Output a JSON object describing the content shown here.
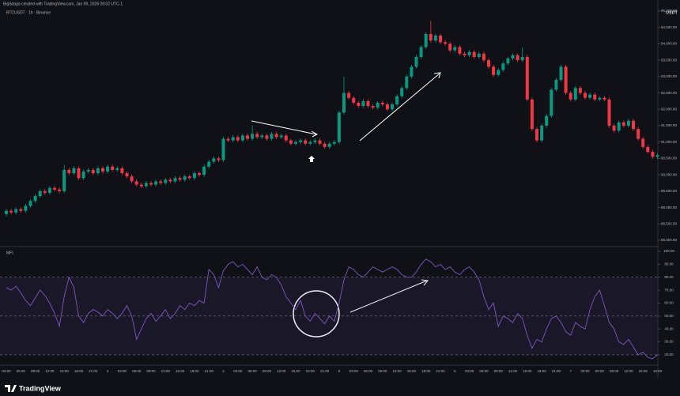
{
  "header": {
    "caption": "BigSdaga created with TradingView.com, Jan 09, 2026 09:02 UTC-1"
  },
  "footer": {
    "brand": "TradingView"
  },
  "chart_data": [
    {
      "type": "candlestick",
      "title": "BTCUSDT · 1h · Binance",
      "y_label": "USDT",
      "up_color": "#089981",
      "down_color": "#f23645",
      "ylim": [
        88000,
        95000
      ],
      "yticks": [
        {
          "value": 88000,
          "label": "88,000.00"
        },
        {
          "value": 88500,
          "label": "88,500.00"
        },
        {
          "value": 89000,
          "label": "89,000.00"
        },
        {
          "value": 89500,
          "label": "89,500.00"
        },
        {
          "value": 90000,
          "label": "90,000.00"
        },
        {
          "value": 90500,
          "label": "90,500.00"
        },
        {
          "value": 91000,
          "label": "91,000.00"
        },
        {
          "value": 91500,
          "label": "91,500.00"
        },
        {
          "value": 92000,
          "label": "92,000.00"
        },
        {
          "value": 92500,
          "label": "92,500.00"
        },
        {
          "value": 93000,
          "label": "93,000.00"
        },
        {
          "value": 93500,
          "label": "93,500.00"
        },
        {
          "value": 94000,
          "label": "94,000.00"
        },
        {
          "value": 94500,
          "label": "94,500.00"
        },
        {
          "value": 95000,
          "label": "95,000.00"
        }
      ],
      "open": [
        88800,
        88900,
        88850,
        88950,
        88900,
        89050,
        89200,
        89350,
        89500,
        89450,
        89600,
        89550,
        89500,
        90150,
        90050,
        90200,
        89900,
        90100,
        90150,
        90050,
        90200,
        90100,
        90250,
        90150,
        90200,
        90050,
        89950,
        89800,
        89700,
        89650,
        89750,
        89700,
        89800,
        89750,
        89850,
        89800,
        89900,
        89850,
        89950,
        89900,
        90050,
        90000,
        90250,
        90400,
        90500,
        90450,
        91100,
        91050,
        91150,
        91050,
        91200,
        91100,
        91250,
        91150,
        91200,
        91100,
        91250,
        91150,
        91200,
        91050,
        90950,
        91000,
        91050,
        90950,
        91000,
        91050,
        90950,
        90850,
        90950,
        91000,
        91900,
        92500,
        92350,
        92200,
        92100,
        92250,
        92100,
        92050,
        92200,
        92150,
        92000,
        92150,
        92400,
        92650,
        93000,
        93300,
        93600,
        93900,
        94300,
        94100,
        94250,
        94050,
        94000,
        93800,
        93900,
        93700,
        93650,
        93750,
        93600,
        93700,
        93500,
        93300,
        93050,
        93200,
        93400,
        93550,
        93650,
        93500,
        93600,
        92300,
        91400,
        91050,
        91500,
        91800,
        92600,
        92900,
        93300,
        92500,
        92300,
        92650,
        92500,
        92350,
        92450,
        92300,
        92350,
        92300,
        91500,
        91350,
        91600,
        91500,
        91650,
        91400,
        91100,
        90850,
        90700,
        90550
      ],
      "high": [
        88960,
        88960,
        89010,
        89010,
        89110,
        89260,
        89410,
        89560,
        89560,
        89660,
        89660,
        89610,
        90300,
        90210,
        90260,
        90260,
        90160,
        90210,
        90210,
        90260,
        90260,
        90310,
        90310,
        90260,
        90260,
        90110,
        90010,
        89860,
        89760,
        89810,
        89810,
        89860,
        89860,
        89910,
        89910,
        89960,
        89960,
        90010,
        90010,
        90110,
        90110,
        90310,
        90460,
        90560,
        90560,
        91160,
        91160,
        91210,
        91210,
        91260,
        91260,
        91500,
        91310,
        91260,
        91260,
        91310,
        91310,
        91260,
        91260,
        91110,
        91060,
        91110,
        91110,
        91060,
        91110,
        91110,
        91010,
        91010,
        91060,
        91960,
        93000,
        92560,
        92410,
        92260,
        92310,
        92310,
        92160,
        92260,
        92260,
        92210,
        92210,
        92460,
        92710,
        93060,
        93360,
        93660,
        93960,
        94360,
        94700,
        94310,
        94310,
        94110,
        94060,
        93960,
        93960,
        93760,
        93810,
        93810,
        93760,
        93760,
        93560,
        93360,
        93260,
        93460,
        93610,
        93710,
        93710,
        93900,
        93660,
        92360,
        91460,
        91560,
        91860,
        92660,
        92960,
        93360,
        93360,
        92560,
        92710,
        92710,
        92560,
        92510,
        92510,
        92410,
        92410,
        92360,
        91560,
        91660,
        91660,
        91710,
        91710,
        91460,
        91160,
        90910,
        90760,
        90660
      ],
      "low": [
        88740,
        88790,
        88790,
        88840,
        88840,
        88990,
        89140,
        89290,
        89390,
        89390,
        89490,
        89440,
        89440,
        89990,
        89990,
        89840,
        89840,
        90040,
        89990,
        89990,
        90040,
        90040,
        90090,
        90090,
        89990,
        89890,
        89740,
        89640,
        89590,
        89590,
        89640,
        89640,
        89690,
        89690,
        89740,
        89740,
        89790,
        89790,
        89840,
        89840,
        89940,
        89940,
        90190,
        90340,
        90390,
        90390,
        90990,
        90990,
        90990,
        90990,
        91040,
        91040,
        91090,
        91090,
        91040,
        91040,
        91090,
        91090,
        90990,
        90890,
        90890,
        90940,
        90890,
        90890,
        90940,
        90890,
        90790,
        90790,
        90890,
        90940,
        91840,
        92290,
        92140,
        92040,
        92040,
        92040,
        91990,
        91990,
        92090,
        91940,
        91940,
        92090,
        92340,
        92590,
        92940,
        93240,
        93540,
        93840,
        94040,
        94040,
        93990,
        93940,
        93740,
        93740,
        93640,
        93590,
        93590,
        93540,
        93540,
        93440,
        93240,
        92990,
        92990,
        93140,
        93340,
        93490,
        93440,
        93440,
        92240,
        91340,
        90990,
        90990,
        91440,
        91740,
        92540,
        92840,
        92440,
        92240,
        92240,
        92440,
        92290,
        92290,
        92240,
        92240,
        92240,
        91440,
        91290,
        91290,
        91440,
        91440,
        91340,
        91040,
        90790,
        90640,
        90490,
        90490
      ],
      "close": [
        88900,
        88850,
        88950,
        88900,
        89050,
        89200,
        89350,
        89500,
        89450,
        89600,
        89550,
        89500,
        90150,
        90050,
        90200,
        89900,
        90100,
        90150,
        90050,
        90200,
        90100,
        90250,
        90150,
        90200,
        90050,
        89950,
        89800,
        89700,
        89650,
        89750,
        89700,
        89800,
        89750,
        89850,
        89800,
        89900,
        89850,
        89950,
        89900,
        90050,
        90000,
        90250,
        90400,
        90500,
        90450,
        91100,
        91050,
        91150,
        91050,
        91200,
        91100,
        91250,
        91150,
        91200,
        91100,
        91250,
        91150,
        91200,
        91050,
        90950,
        91000,
        91050,
        90950,
        91000,
        91050,
        90950,
        90850,
        90950,
        91000,
        91900,
        92500,
        92350,
        92200,
        92100,
        92250,
        92100,
        92050,
        92200,
        92150,
        92000,
        92150,
        92400,
        92650,
        93000,
        93300,
        93600,
        93900,
        94300,
        94100,
        94250,
        94050,
        94000,
        93800,
        93900,
        93700,
        93650,
        93750,
        93600,
        93700,
        93500,
        93300,
        93050,
        93200,
        93400,
        93550,
        93650,
        93500,
        93600,
        92300,
        91400,
        91050,
        91500,
        91800,
        92600,
        92900,
        93300,
        92500,
        92300,
        92650,
        92500,
        92350,
        92450,
        92300,
        92350,
        92300,
        91500,
        91350,
        91600,
        91500,
        91650,
        91400,
        91100,
        90850,
        90700,
        90550,
        90600
      ]
    },
    {
      "type": "line",
      "title": "MFI",
      "color": "#7e57c2",
      "ylim": [
        12,
        100
      ],
      "yticks": [
        {
          "value": 20,
          "label": "20.00"
        },
        {
          "value": 30,
          "label": "30.00"
        },
        {
          "value": 40,
          "label": "40.00"
        },
        {
          "value": 50,
          "label": "50.00"
        },
        {
          "value": 60,
          "label": "60.00"
        },
        {
          "value": 70,
          "label": "70.00"
        },
        {
          "value": 80,
          "label": "80.00"
        },
        {
          "value": 90,
          "label": "90.00"
        },
        {
          "value": 100,
          "label": "100.00"
        }
      ],
      "levels": [
        80,
        50,
        20
      ],
      "categories": [
        "03:00",
        null,
        null,
        "06:00",
        null,
        null,
        "09:00",
        null,
        null,
        "12:00",
        null,
        null,
        "15:00",
        null,
        null,
        "18:00",
        null,
        null,
        "21:00",
        null,
        null,
        "3",
        null,
        null,
        "03:00",
        null,
        null,
        "06:00",
        null,
        null,
        "09:00",
        null,
        null,
        "12:00",
        null,
        null,
        "15:00",
        null,
        null,
        "18:00",
        null,
        null,
        "21:00",
        null,
        null,
        "4",
        null,
        null,
        "03:00",
        null,
        null,
        "06:00",
        null,
        null,
        "09:00",
        null,
        null,
        "12:00",
        null,
        null,
        "15:00",
        null,
        null,
        "18:00",
        null,
        null,
        "21:00",
        null,
        null,
        "5",
        null,
        null,
        "03:00",
        null,
        null,
        "06:00",
        null,
        null,
        "09:00",
        null,
        null,
        "12:00",
        null,
        null,
        "15:00",
        null,
        null,
        "18:00",
        null,
        null,
        "21:00",
        null,
        null,
        "6",
        null,
        null,
        "03:00",
        null,
        null,
        "06:00",
        null,
        null,
        "09:00",
        null,
        null,
        "12:00",
        null,
        null,
        "15:00",
        null,
        null,
        "18:00",
        null,
        null,
        "21:00",
        null,
        null,
        "7",
        null,
        null,
        "03:00",
        null,
        null,
        "06:00",
        null,
        null,
        "09:00",
        null,
        null,
        "12:00",
        null,
        null,
        "15:00",
        null,
        null,
        "18:00"
      ],
      "values": [
        72,
        70,
        73,
        68,
        62,
        58,
        64,
        70,
        66,
        60,
        52,
        42,
        65,
        80,
        72,
        50,
        45,
        52,
        55,
        53,
        50,
        55,
        52,
        48,
        52,
        58,
        50,
        32,
        40,
        48,
        52,
        46,
        50,
        55,
        48,
        52,
        58,
        55,
        60,
        58,
        62,
        60,
        86,
        82,
        72,
        85,
        90,
        92,
        88,
        90,
        86,
        82,
        88,
        80,
        78,
        82,
        80,
        74,
        65,
        60,
        55,
        62,
        50,
        46,
        52,
        48,
        44,
        50,
        46,
        60,
        78,
        88,
        86,
        82,
        80,
        84,
        88,
        86,
        84,
        86,
        88,
        86,
        82,
        80,
        80,
        84,
        90,
        94,
        92,
        88,
        90,
        86,
        88,
        84,
        82,
        86,
        88,
        84,
        78,
        65,
        55,
        60,
        42,
        50,
        48,
        45,
        52,
        48,
        35,
        25,
        32,
        30,
        40,
        48,
        50,
        45,
        38,
        35,
        45,
        42,
        40,
        55,
        65,
        70,
        58,
        45,
        40,
        30,
        28,
        32,
        26,
        20,
        22,
        18,
        17,
        20
      ]
    }
  ]
}
